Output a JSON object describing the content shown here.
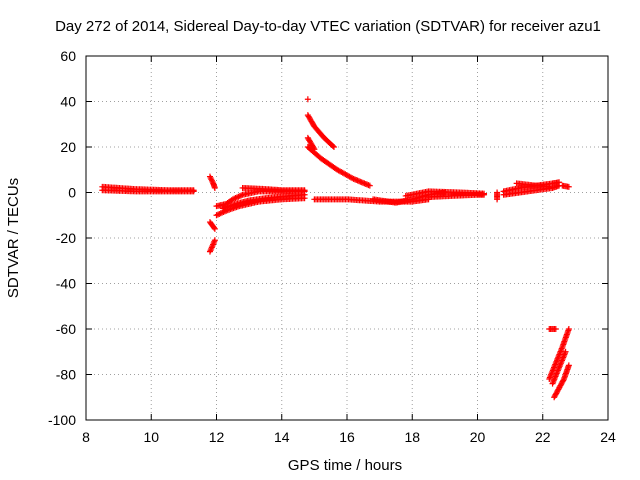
{
  "chart_data": {
    "type": "scatter",
    "title": "Day 272 of 2014, Sidereal Day-to-day VTEC variation (SDTVAR) for receiver azu1",
    "xlabel": "GPS time / hours",
    "ylabel": "SDTVAR / TECUs",
    "xlim": [
      8,
      24
    ],
    "ylim": [
      -100,
      60
    ],
    "xticks": [
      8,
      10,
      12,
      14,
      16,
      18,
      20,
      22,
      24
    ],
    "yticks": [
      60,
      40,
      20,
      0,
      -20,
      -40,
      -60,
      -80,
      -100
    ],
    "grid": true,
    "marker": "plus",
    "series": [
      {
        "name": "SDTVAR",
        "color": "#ff0000",
        "segments": [
          [
            [
              8.5,
              2.5
            ],
            [
              9.5,
              1.5
            ],
            [
              10.5,
              1.0
            ],
            [
              11.3,
              1.0
            ]
          ],
          [
            [
              8.5,
              1.0
            ],
            [
              9.5,
              0.5
            ],
            [
              10.5,
              0.5
            ],
            [
              11.3,
              0.5
            ]
          ],
          [
            [
              11.8,
              7.0
            ],
            [
              11.9,
              4.0
            ],
            [
              11.95,
              2.0
            ]
          ],
          [
            [
              11.8,
              -13.0
            ],
            [
              11.95,
              -16.0
            ]
          ],
          [
            [
              11.8,
              -26.0
            ],
            [
              11.95,
              -21.0
            ]
          ],
          [
            [
              12.0,
              -6.0
            ],
            [
              12.3,
              -5.0
            ],
            [
              12.5,
              -3.0
            ],
            [
              12.8,
              -1.0
            ],
            [
              13.3,
              0.5
            ],
            [
              14.0,
              0.5
            ],
            [
              14.7,
              0.5
            ]
          ],
          [
            [
              12.0,
              -10.0
            ],
            [
              12.3,
              -8.0
            ],
            [
              12.7,
              -6.0
            ],
            [
              13.3,
              -4.0
            ],
            [
              14.0,
              -3.0
            ],
            [
              14.7,
              -2.5
            ]
          ],
          [
            [
              12.2,
              -7.0
            ],
            [
              12.6,
              -5.0
            ],
            [
              13.0,
              -3.5
            ],
            [
              13.5,
              -2.5
            ],
            [
              14.2,
              -1.5
            ],
            [
              14.7,
              -1.0
            ]
          ],
          [
            [
              12.8,
              2.0
            ],
            [
              13.5,
              1.5
            ],
            [
              14.0,
              1.0
            ],
            [
              14.7,
              1.0
            ]
          ],
          [
            [
              14.8,
              41.0
            ]
          ],
          [
            [
              14.8,
              34.0
            ],
            [
              15.0,
              29.0
            ],
            [
              15.3,
              24.0
            ],
            [
              15.6,
              20.0
            ]
          ],
          [
            [
              14.8,
              24.0
            ],
            [
              15.0,
              19.0
            ]
          ],
          [
            [
              14.8,
              20.0
            ],
            [
              15.2,
              15.0
            ],
            [
              15.7,
              10.0
            ],
            [
              16.2,
              6.0
            ],
            [
              16.7,
              3.0
            ]
          ],
          [
            [
              15.0,
              -3.0
            ],
            [
              16.0,
              -3.0
            ],
            [
              17.0,
              -4.0
            ],
            [
              18.0,
              -4.0
            ],
            [
              18.5,
              -3.0
            ]
          ],
          [
            [
              16.8,
              -3.0
            ],
            [
              17.5,
              -4.5
            ],
            [
              18.0,
              -3.0
            ],
            [
              18.5,
              -1.0
            ],
            [
              19.0,
              0.0
            ]
          ],
          [
            [
              17.8,
              -1.5
            ],
            [
              18.5,
              0.5
            ],
            [
              19.5,
              0.0
            ],
            [
              20.2,
              -0.5
            ]
          ],
          [
            [
              18.5,
              -2.0
            ],
            [
              19.2,
              -1.5
            ],
            [
              20.0,
              -1.0
            ],
            [
              20.2,
              -1.0
            ]
          ],
          [
            [
              20.6,
              -3.0
            ],
            [
              20.6,
              0.0
            ]
          ],
          [
            [
              20.8,
              0.5
            ],
            [
              21.3,
              2.0
            ],
            [
              21.8,
              3.0
            ],
            [
              22.3,
              4.0
            ],
            [
              22.5,
              4.5
            ]
          ],
          [
            [
              20.8,
              -1.0
            ],
            [
              21.3,
              0.0
            ],
            [
              21.8,
              1.0
            ],
            [
              22.3,
              2.0
            ],
            [
              22.5,
              3.0
            ]
          ],
          [
            [
              21.2,
              4.0
            ],
            [
              21.8,
              3.0
            ],
            [
              22.2,
              2.5
            ]
          ],
          [
            [
              22.6,
              3.0
            ],
            [
              22.8,
              2.5
            ]
          ],
          [
            [
              22.2,
              -60.0
            ],
            [
              22.4,
              -60.0
            ]
          ],
          [
            [
              22.2,
              -82.0
            ],
            [
              22.4,
              -75.0
            ],
            [
              22.6,
              -68.0
            ],
            [
              22.8,
              -60.0
            ]
          ],
          [
            [
              22.3,
              -84.0
            ],
            [
              22.5,
              -77.0
            ],
            [
              22.7,
              -70.0
            ]
          ],
          [
            [
              22.35,
              -90.0
            ],
            [
              22.5,
              -86.0
            ],
            [
              22.65,
              -82.0
            ],
            [
              22.8,
              -76.0
            ]
          ]
        ]
      }
    ]
  }
}
